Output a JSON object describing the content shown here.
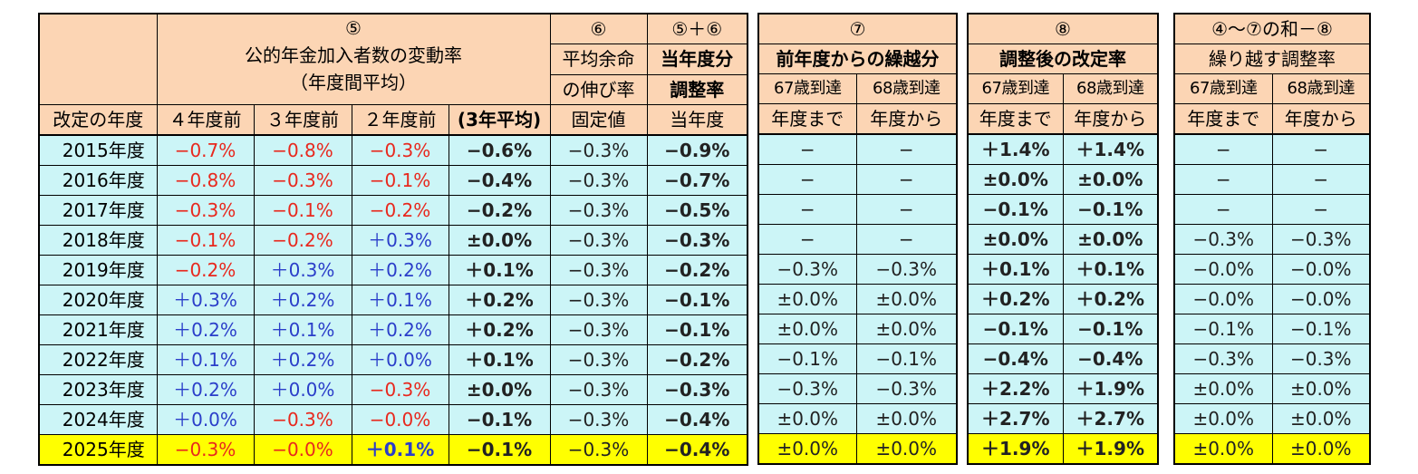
{
  "table1": {
    "h_circle5": "⑤",
    "h_rate_title": "公的年金加入者数の変動率",
    "h_rate_sub": "（年度間平均）",
    "h_circle6": "⑥",
    "h_life1": "平均余命",
    "h_life2": "の伸び率",
    "h_sum": "⑤＋⑥",
    "h_cur1": "当年度分",
    "h_cur2": "調整率",
    "h_year": "改定の年度",
    "h_4y": "４年度前",
    "h_3y": "３年度前",
    "h_2y": "２年度前",
    "h_avg": "(3年平均)",
    "h_fixed": "固定値",
    "h_current": "当年度",
    "rows": [
      {
        "year": "2015年度",
        "y4": "−0.7%",
        "y3": "−0.8%",
        "y2": "−0.3%",
        "avg": "−0.6%",
        "fix": "−0.3%",
        "adj": "−0.9%"
      },
      {
        "year": "2016年度",
        "y4": "−0.8%",
        "y3": "−0.3%",
        "y2": "−0.1%",
        "avg": "−0.4%",
        "fix": "−0.3%",
        "adj": "−0.7%"
      },
      {
        "year": "2017年度",
        "y4": "−0.3%",
        "y3": "−0.1%",
        "y2": "−0.2%",
        "avg": "−0.2%",
        "fix": "−0.3%",
        "adj": "−0.5%"
      },
      {
        "year": "2018年度",
        "y4": "−0.1%",
        "y3": "−0.2%",
        "y2": "＋0.3%",
        "avg": "±0.0%",
        "fix": "−0.3%",
        "adj": "−0.3%"
      },
      {
        "year": "2019年度",
        "y4": "−0.2%",
        "y3": "＋0.3%",
        "y2": "＋0.2%",
        "avg": "＋0.1%",
        "fix": "−0.3%",
        "adj": "−0.2%"
      },
      {
        "year": "2020年度",
        "y4": "＋0.3%",
        "y3": "＋0.2%",
        "y2": "＋0.1%",
        "avg": "＋0.2%",
        "fix": "−0.3%",
        "adj": "−0.1%"
      },
      {
        "year": "2021年度",
        "y4": "＋0.2%",
        "y3": "＋0.1%",
        "y2": "＋0.2%",
        "avg": "＋0.2%",
        "fix": "−0.3%",
        "adj": "−0.1%"
      },
      {
        "year": "2022年度",
        "y4": "＋0.1%",
        "y3": "＋0.2%",
        "y2": "＋0.0%",
        "avg": "＋0.1%",
        "fix": "−0.3%",
        "adj": "−0.2%"
      },
      {
        "year": "2023年度",
        "y4": "＋0.2%",
        "y3": "＋0.0%",
        "y2": "−0.3%",
        "avg": "±0.0%",
        "fix": "−0.3%",
        "adj": "−0.3%"
      },
      {
        "year": "2024年度",
        "y4": "＋0.0%",
        "y3": "−0.3%",
        "y2": "−0.0%",
        "avg": "−0.1%",
        "fix": "−0.3%",
        "adj": "−0.4%"
      },
      {
        "year": "2025年度",
        "y4": "−0.3%",
        "y3": "−0.0%",
        "y2": "＋0.1%",
        "avg": "−0.1%",
        "fix": "−0.3%",
        "adj": "−0.4%"
      }
    ]
  },
  "table2": {
    "h_circle": "⑦",
    "h_title": "前年度からの繰越分",
    "h_a1": "67歳到達",
    "h_a2": "年度まで",
    "h_b1": "68歳到達",
    "h_b2": "年度から",
    "rows": [
      [
        "−",
        "−"
      ],
      [
        "−",
        "−"
      ],
      [
        "−",
        "−"
      ],
      [
        "−",
        "−"
      ],
      [
        "−0.3%",
        "−0.3%"
      ],
      [
        "±0.0%",
        "±0.0%"
      ],
      [
        "±0.0%",
        "±0.0%"
      ],
      [
        "−0.1%",
        "−0.1%"
      ],
      [
        "−0.3%",
        "−0.3%"
      ],
      [
        "±0.0%",
        "±0.0%"
      ],
      [
        "±0.0%",
        "±0.0%"
      ]
    ]
  },
  "table3": {
    "h_circle": "⑧",
    "h_title": "調整後の改定率",
    "h_a1": "67歳到達",
    "h_a2": "年度まで",
    "h_b1": "68歳到達",
    "h_b2": "年度から",
    "rows": [
      [
        "＋1.4%",
        "＋1.4%"
      ],
      [
        "±0.0%",
        "±0.0%"
      ],
      [
        "−0.1%",
        "−0.1%"
      ],
      [
        "±0.0%",
        "±0.0%"
      ],
      [
        "＋0.1%",
        "＋0.1%"
      ],
      [
        "＋0.2%",
        "＋0.2%"
      ],
      [
        "−0.1%",
        "−0.1%"
      ],
      [
        "−0.4%",
        "−0.4%"
      ],
      [
        "＋2.2%",
        "＋1.9%"
      ],
      [
        "＋2.7%",
        "＋2.7%"
      ],
      [
        "＋1.9%",
        "＋1.9%"
      ]
    ]
  },
  "table4": {
    "h_circle": "④〜⑦の和－⑧",
    "h_title": "繰り越す調整率",
    "h_a1": "67歳到達",
    "h_a2": "年度まで",
    "h_b1": "68歳到達",
    "h_b2": "年度から",
    "rows": [
      [
        "−",
        "−"
      ],
      [
        "−",
        "−"
      ],
      [
        "−",
        "−"
      ],
      [
        "−0.3%",
        "−0.3%"
      ],
      [
        "−0.0%",
        "−0.0%"
      ],
      [
        "−0.0%",
        "−0.0%"
      ],
      [
        "−0.1%",
        "−0.1%"
      ],
      [
        "−0.3%",
        "−0.3%"
      ],
      [
        "±0.0%",
        "±0.0%"
      ],
      [
        "±0.0%",
        "±0.0%"
      ],
      [
        "±0.0%",
        "±0.0%"
      ]
    ]
  },
  "colors": {
    "header": "#fcd5b4",
    "cell": "#ccf5f7",
    "highlight": "#ffff00",
    "negative": "#e8281e",
    "positive": "#2b3ec9"
  }
}
